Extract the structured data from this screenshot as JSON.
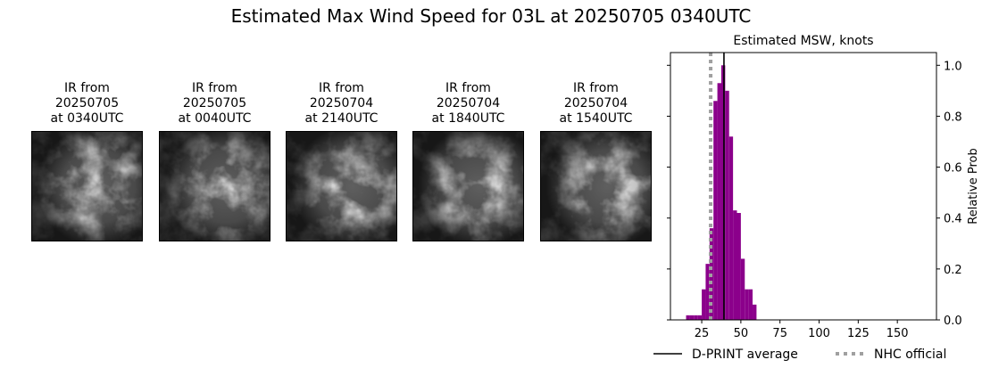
{
  "title": "Estimated Max Wind Speed for 03L at 20250705 0340UTC",
  "panels": [
    {
      "lines": [
        "IR from",
        "20250705",
        "at 0340UTC"
      ]
    },
    {
      "lines": [
        "IR from",
        "20250705",
        "at 0040UTC"
      ]
    },
    {
      "lines": [
        "IR from",
        "20250704",
        "at 2140UTC"
      ]
    },
    {
      "lines": [
        "IR from",
        "20250704",
        "at 1840UTC"
      ]
    },
    {
      "lines": [
        "IR from",
        "20250704",
        "at 1540UTC"
      ]
    }
  ],
  "chart_data": {
    "type": "histogram",
    "title": "Estimated MSW, knots",
    "ylabel": "Relative Prob",
    "color": "#8b008b",
    "bins": [
      15,
      17.5,
      20,
      22.5,
      25,
      27.5,
      30,
      32.5,
      35,
      37.5,
      40,
      42.5,
      45,
      47.5,
      50,
      52.5,
      55,
      57.5,
      60
    ],
    "values": [
      0.018,
      0.018,
      0.018,
      0.018,
      0.12,
      0.22,
      0.36,
      0.86,
      0.93,
      1.0,
      0.9,
      0.72,
      0.43,
      0.42,
      0.24,
      0.12,
      0.12,
      0.06
    ],
    "xlim": [
      5,
      175
    ],
    "ylim": [
      0,
      1.05
    ],
    "xticks": [
      25,
      50,
      75,
      100,
      125,
      150
    ],
    "yticks": [
      {
        "value": 0,
        "label": "0.0"
      },
      {
        "value": 0.2,
        "label": "0.2"
      },
      {
        "value": 0.4,
        "label": "0.4"
      },
      {
        "value": 0.6,
        "label": "0.6"
      },
      {
        "value": 0.8,
        "label": "0.8"
      },
      {
        "value": 1.0,
        "label": "1.0"
      }
    ],
    "yaxis_side": "right",
    "reference_lines": [
      {
        "name": "D-PRINT average",
        "value": 39.2,
        "color": "#000000",
        "style": "solid"
      },
      {
        "name": "NHC official",
        "value": 30.7,
        "color": "#a0a0a0",
        "style": "dotted"
      }
    ],
    "legend": "bottom"
  }
}
